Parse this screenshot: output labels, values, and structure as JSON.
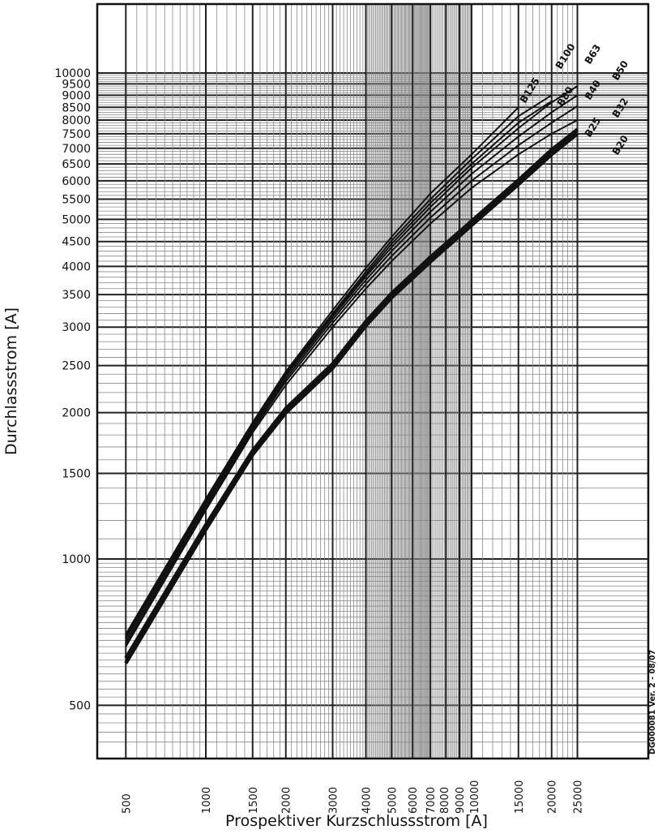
{
  "chart_data": {
    "type": "line",
    "title": "",
    "xlabel": "Prospektiver Kurzschlussstrom [A]",
    "ylabel": "Durchlassstrom  [A]",
    "xscale": "log",
    "yscale": "log",
    "xlim": [
      500,
      25000
    ],
    "ylim": [
      420,
      10000
    ],
    "grid": true,
    "x_ticks": [
      500,
      1000,
      1500,
      2000,
      3000,
      4000,
      5000,
      6000,
      7000,
      8000,
      9000,
      10000,
      15000,
      20000,
      25000
    ],
    "y_ticks": [
      500,
      1000,
      1500,
      2000,
      2500,
      3000,
      3500,
      4000,
      4500,
      5000,
      5500,
      6000,
      6500,
      7000,
      7500,
      8000,
      8500,
      9000,
      9500,
      10000
    ],
    "x": [
      500,
      1000,
      1500,
      2000,
      3000,
      4000,
      5000,
      7000,
      10000,
      15000,
      20000,
      25000
    ],
    "series": [
      {
        "name": "B125",
        "values": [
          700,
          1330,
          1910,
          2430,
          3250,
          3970,
          4600,
          5650,
          6800,
          8500,
          null,
          null
        ]
      },
      {
        "name": "B100",
        "values": [
          695,
          1320,
          1900,
          2410,
          3200,
          3900,
          4520,
          5500,
          6650,
          8150,
          9000,
          null
        ]
      },
      {
        "name": "B80",
        "values": [
          690,
          1310,
          1890,
          2390,
          3170,
          3850,
          4450,
          5400,
          6500,
          7900,
          8750,
          null
        ]
      },
      {
        "name": "B63",
        "values": [
          685,
          1305,
          1880,
          2380,
          3150,
          3810,
          4380,
          5300,
          6380,
          7700,
          8700,
          9400
        ]
      },
      {
        "name": "B50",
        "values": [
          675,
          1290,
          1860,
          2350,
          3110,
          3750,
          4300,
          5180,
          6200,
          7400,
          8300,
          9000
        ]
      },
      {
        "name": "B40",
        "values": [
          665,
          1275,
          1840,
          2320,
          3060,
          3680,
          4200,
          5040,
          6000,
          7100,
          7900,
          8550
        ]
      },
      {
        "name": "B32",
        "values": [
          660,
          1260,
          1820,
          2280,
          3000,
          3600,
          4100,
          4900,
          5800,
          6800,
          7500,
          8000
        ]
      },
      {
        "name": "B25",
        "values": [
          625,
          1175,
          1670,
          2040,
          2520,
          3080,
          3520,
          4180,
          4960,
          6020,
          6950,
          7650
        ]
      },
      {
        "name": "B20",
        "values": [
          610,
          1150,
          1640,
          2000,
          2470,
          3020,
          3450,
          4090,
          4860,
          5900,
          6800,
          7500
        ]
      }
    ],
    "annotation": "DG000081  Ver. 2 - 08/07"
  }
}
